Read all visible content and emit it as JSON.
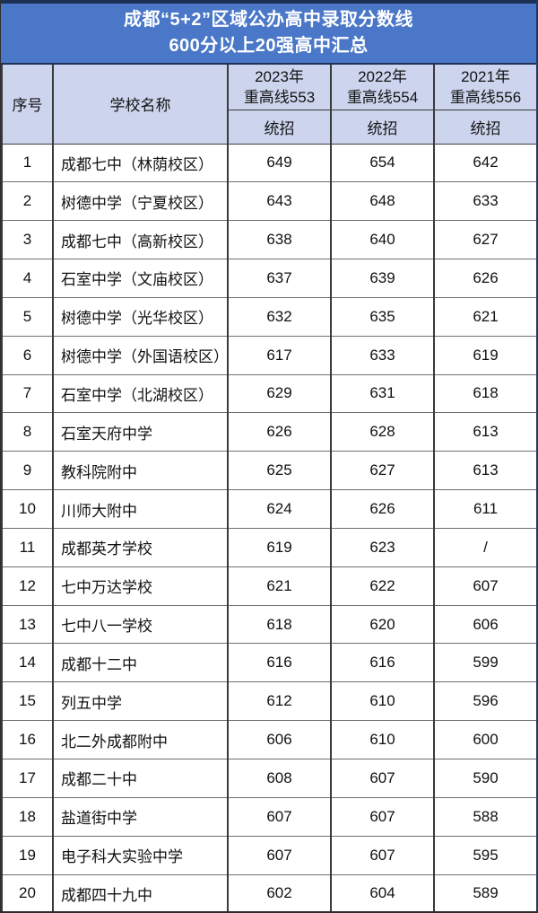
{
  "title": {
    "line1": "成都“5+2”区域公办高中录取分数线",
    "line2": "600分以上20强高中汇总"
  },
  "table": {
    "headers": {
      "index": "序号",
      "school": "学校名称",
      "year_columns": [
        {
          "year": "2023年",
          "baseline": "重高线553",
          "sub": "统招"
        },
        {
          "year": "2022年",
          "baseline": "重高线554",
          "sub": "统招"
        },
        {
          "year": "2021年",
          "baseline": "重高线556",
          "sub": "统招"
        }
      ]
    },
    "rows": [
      {
        "no": "1",
        "school": "成都七中（林荫校区）",
        "s2023": "649",
        "s2022": "654",
        "s2021": "642"
      },
      {
        "no": "2",
        "school": "树德中学（宁夏校区）",
        "s2023": "643",
        "s2022": "648",
        "s2021": "633"
      },
      {
        "no": "3",
        "school": "成都七中（高新校区）",
        "s2023": "638",
        "s2022": "640",
        "s2021": "627"
      },
      {
        "no": "4",
        "school": "石室中学（文庙校区）",
        "s2023": "637",
        "s2022": "639",
        "s2021": "626"
      },
      {
        "no": "5",
        "school": "树德中学（光华校区）",
        "s2023": "632",
        "s2022": "635",
        "s2021": "621"
      },
      {
        "no": "6",
        "school": "树德中学（外国语校区）",
        "s2023": "617",
        "s2022": "633",
        "s2021": "619"
      },
      {
        "no": "7",
        "school": "石室中学（北湖校区）",
        "s2023": "629",
        "s2022": "631",
        "s2021": "618"
      },
      {
        "no": "8",
        "school": "石室天府中学",
        "s2023": "626",
        "s2022": "628",
        "s2021": "613"
      },
      {
        "no": "9",
        "school": "教科院附中",
        "s2023": "625",
        "s2022": "627",
        "s2021": "613"
      },
      {
        "no": "10",
        "school": "川师大附中",
        "s2023": "624",
        "s2022": "626",
        "s2021": "611"
      },
      {
        "no": "11",
        "school": "成都英才学校",
        "s2023": "619",
        "s2022": "623",
        "s2021": "/"
      },
      {
        "no": "12",
        "school": "七中万达学校",
        "s2023": "621",
        "s2022": "622",
        "s2021": "607"
      },
      {
        "no": "13",
        "school": "七中八一学校",
        "s2023": "618",
        "s2022": "620",
        "s2021": "606"
      },
      {
        "no": "14",
        "school": "成都十二中",
        "s2023": "616",
        "s2022": "616",
        "s2021": "599"
      },
      {
        "no": "15",
        "school": "列五中学",
        "s2023": "612",
        "s2022": "610",
        "s2021": "596"
      },
      {
        "no": "16",
        "school": "北二外成都附中",
        "s2023": "606",
        "s2022": "610",
        "s2021": "600"
      },
      {
        "no": "17",
        "school": "成都二十中",
        "s2023": "608",
        "s2022": "607",
        "s2021": "590"
      },
      {
        "no": "18",
        "school": "盐道街中学",
        "s2023": "607",
        "s2022": "607",
        "s2021": "588"
      },
      {
        "no": "19",
        "school": "电子科大实验中学",
        "s2023": "607",
        "s2022": "607",
        "s2021": "595"
      },
      {
        "no": "20",
        "school": "成都四十九中",
        "s2023": "602",
        "s2022": "604",
        "s2021": "589"
      }
    ]
  },
  "chart_data": {
    "type": "table",
    "title": "成都“5+2”区域公办高中录取分数线 600分以上20强高中汇总",
    "columns": [
      "序号",
      "学校名称",
      "2023年 重高线553 统招",
      "2022年 重高线554 统招",
      "2021年 重高线556 统招"
    ],
    "rows": [
      [
        1,
        "成都七中（林荫校区）",
        649,
        654,
        642
      ],
      [
        2,
        "树德中学（宁夏校区）",
        643,
        648,
        633
      ],
      [
        3,
        "成都七中（高新校区）",
        638,
        640,
        627
      ],
      [
        4,
        "石室中学（文庙校区）",
        637,
        639,
        626
      ],
      [
        5,
        "树德中学（光华校区）",
        632,
        635,
        621
      ],
      [
        6,
        "树德中学（外国语校区）",
        617,
        633,
        619
      ],
      [
        7,
        "石室中学（北湖校区）",
        629,
        631,
        618
      ],
      [
        8,
        "石室天府中学",
        626,
        628,
        613
      ],
      [
        9,
        "教科院附中",
        625,
        627,
        613
      ],
      [
        10,
        "川师大附中",
        624,
        626,
        611
      ],
      [
        11,
        "成都英才学校",
        619,
        623,
        "/"
      ],
      [
        12,
        "七中万达学校",
        621,
        622,
        607
      ],
      [
        13,
        "七中八一学校",
        618,
        620,
        606
      ],
      [
        14,
        "成都十二中",
        616,
        616,
        599
      ],
      [
        15,
        "列五中学",
        612,
        610,
        596
      ],
      [
        16,
        "北二外成都附中",
        606,
        610,
        600
      ],
      [
        17,
        "成都二十中",
        608,
        607,
        590
      ],
      [
        18,
        "盐道街中学",
        607,
        607,
        588
      ],
      [
        19,
        "电子科大实验中学",
        607,
        607,
        595
      ],
      [
        20,
        "成都四十九中",
        602,
        604,
        589
      ]
    ]
  },
  "colors": {
    "title_bg": "#4a77c8",
    "title_border": "#1d3156",
    "header_bg": "#ccd5ed",
    "grid_vertical": "#3a3a3a",
    "grid_horizontal": "#6f6f6f"
  }
}
